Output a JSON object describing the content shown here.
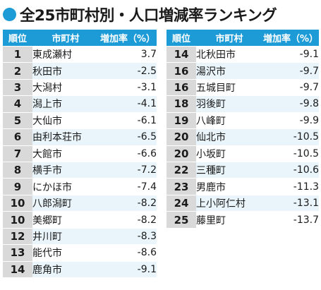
{
  "title": "全25市町村別・人口増減率ランキング",
  "headers": {
    "rank": "順位",
    "municipality": "市町村",
    "rate": "増加率（%）"
  },
  "left_rows": [
    {
      "rank": "1",
      "name": "東成瀬村",
      "rate": "3.7"
    },
    {
      "rank": "2",
      "name": "秋田市",
      "rate": "-2.5"
    },
    {
      "rank": "3",
      "name": "大潟村",
      "rate": "-3.1"
    },
    {
      "rank": "4",
      "name": "潟上市",
      "rate": "-4.1"
    },
    {
      "rank": "5",
      "name": "大仙市",
      "rate": "-6.1"
    },
    {
      "rank": "6",
      "name": "由利本荘市",
      "rate": "-6.5"
    },
    {
      "rank": "7",
      "name": "大館市",
      "rate": "-6.6"
    },
    {
      "rank": "8",
      "name": "横手市",
      "rate": "-7.2"
    },
    {
      "rank": "9",
      "name": "にかほ市",
      "rate": "-7.4"
    },
    {
      "rank": "10",
      "name": "八郎潟町",
      "rate": "-8.2"
    },
    {
      "rank": "10",
      "name": "美郷町",
      "rate": "-8.2"
    },
    {
      "rank": "12",
      "name": "井川町",
      "rate": "-8.3"
    },
    {
      "rank": "13",
      "name": "能代市",
      "rate": "-8.6"
    },
    {
      "rank": "14",
      "name": "鹿角市",
      "rate": "-9.1"
    }
  ],
  "right_rows": [
    {
      "rank": "14",
      "name": "北秋田市",
      "rate": "-9.1"
    },
    {
      "rank": "16",
      "name": "湯沢市",
      "rate": "-9.7"
    },
    {
      "rank": "16",
      "name": "五城目町",
      "rate": "-9.7"
    },
    {
      "rank": "18",
      "name": "羽後町",
      "rate": "-9.8"
    },
    {
      "rank": "19",
      "name": "八峰町",
      "rate": "-9.9"
    },
    {
      "rank": "20",
      "name": "仙北市",
      "rate": "-10.5"
    },
    {
      "rank": "20",
      "name": "小坂町",
      "rate": "-10.5"
    },
    {
      "rank": "22",
      "name": "三種町",
      "rate": "-10.6"
    },
    {
      "rank": "23",
      "name": "男鹿市",
      "rate": "-11.3"
    },
    {
      "rank": "24",
      "name": "上小阿仁村",
      "rate": "-13.1"
    },
    {
      "rank": "25",
      "name": "藤里町",
      "rate": "-13.7"
    }
  ],
  "colors": {
    "accent": "#1c9bd7",
    "rank_cell": "#d9d9d9",
    "row_tint": "#e9f5fb"
  }
}
